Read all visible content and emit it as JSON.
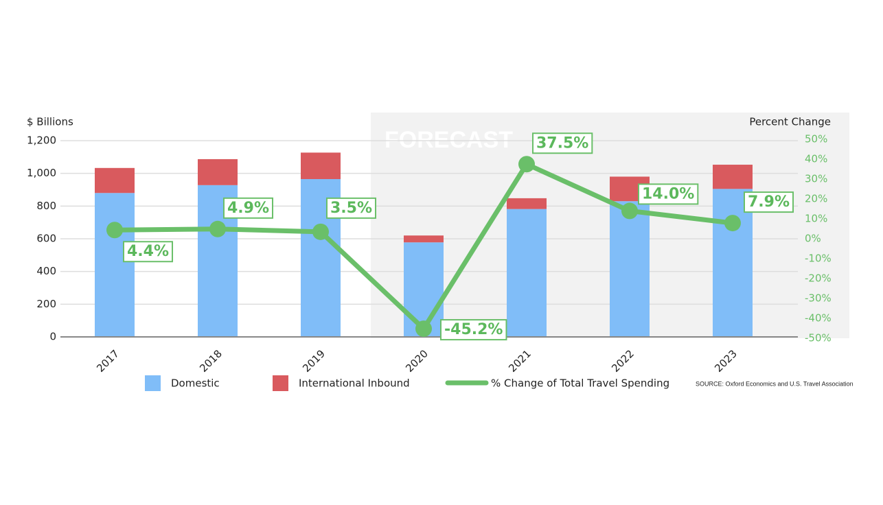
{
  "chart_data": {
    "type": "bar-line",
    "annotation": "FORECAST",
    "ylabel": "$ Billions",
    "y2label": "Percent Change",
    "source": "SOURCE: Oxford Economics and U.S. Travel Association",
    "categories": [
      "2017",
      "2018",
      "2019",
      "2020",
      "2021",
      "2022",
      "2023"
    ],
    "ylim": [
      0,
      1200
    ],
    "yticks": [
      0,
      200,
      400,
      600,
      800,
      {
        "value": 1000,
        "label": "1,000"
      },
      {
        "value": 1200,
        "label": "1,200"
      }
    ],
    "y2lim": [
      -50,
      50
    ],
    "y2ticks": [
      {
        "value": -50,
        "label": "-50%"
      },
      {
        "value": -40,
        "label": "-40%"
      },
      {
        "value": -30,
        "label": "-30%"
      },
      {
        "value": -20,
        "label": "-20%"
      },
      {
        "value": -10,
        "label": "-10%"
      },
      {
        "value": 0,
        "label": "0%"
      },
      {
        "value": 10,
        "label": "10%"
      },
      {
        "value": 20,
        "label": "20%"
      },
      {
        "value": 30,
        "label": "30%"
      },
      {
        "value": 40,
        "label": "40%"
      },
      {
        "value": 50,
        "label": "50%"
      }
    ],
    "grid": true,
    "series": [
      {
        "name": "Domestic",
        "color": "#80bdf8",
        "type": "bar",
        "values": [
          880,
          928,
          965,
          578,
          782,
          830,
          905
        ]
      },
      {
        "name": "International Inbound",
        "color": "#d95a5e",
        "type": "bar",
        "values": [
          153,
          159,
          162,
          42,
          66,
          150,
          148
        ]
      },
      {
        "name": "% Change of Total Travel Spending",
        "color": "#6abf69",
        "type": "line",
        "axis": "y2",
        "values": [
          4.4,
          4.9,
          3.5,
          -45.2,
          37.5,
          14.0,
          7.9
        ],
        "value_labels": [
          "4.4%",
          "4.9%",
          "3.5%",
          "-45.2%",
          "37.5%",
          "14.0%",
          "7.9%"
        ]
      }
    ]
  }
}
